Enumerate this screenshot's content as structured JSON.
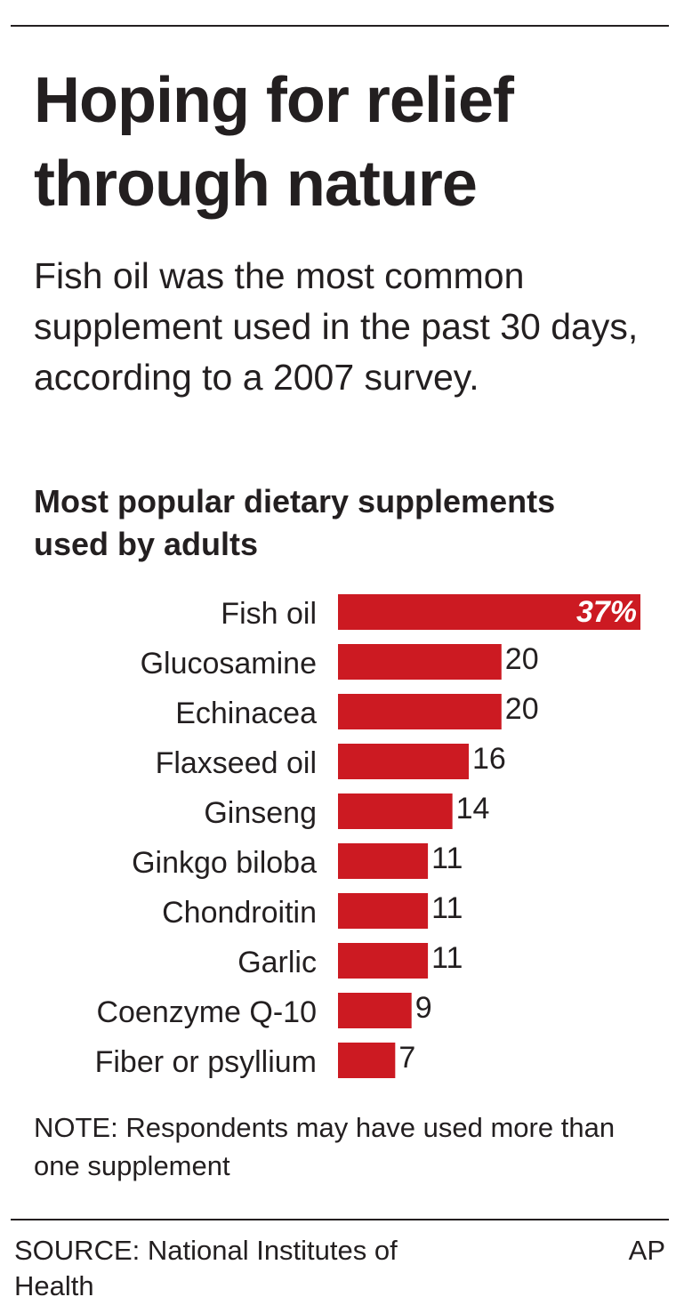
{
  "headline": "Hoping for relief through nature",
  "subhead": "Fish oil was the most common supplement used in the past 30 days, according to a 2007 survey.",
  "note": "NOTE: Respondents may have used more than one supplement",
  "source": "SOURCE: National Institutes of Health",
  "credit": "AP",
  "chart_data": {
    "type": "bar",
    "orientation": "horizontal",
    "title": "Most popular dietary supplements used by adults",
    "categories": [
      "Fish oil",
      "Glucosamine",
      "Echinacea",
      "Flaxseed oil",
      "Ginseng",
      "Ginkgo biloba",
      "Chondroitin",
      "Garlic",
      "Coenzyme Q-10",
      "Fiber or psyllium"
    ],
    "values": [
      37,
      20,
      20,
      16,
      14,
      11,
      11,
      11,
      9,
      7
    ],
    "value_labels": [
      "37%",
      "20",
      "20",
      "16",
      "14",
      "11",
      "11",
      "11",
      "9",
      "7"
    ],
    "unit": "%",
    "xlim": [
      0,
      37
    ],
    "grid": false,
    "bar_color": "#cc1a22",
    "highlight_label_color": "#ffffff"
  }
}
